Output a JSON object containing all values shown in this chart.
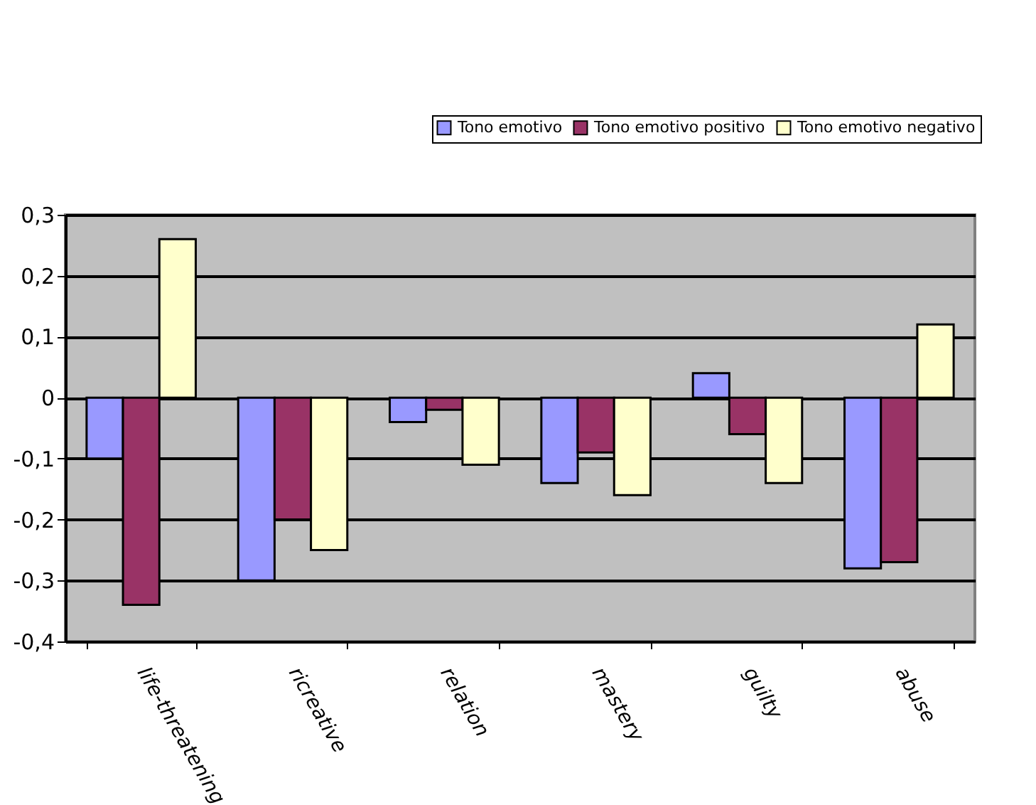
{
  "chart_data": {
    "type": "bar",
    "categories": [
      "life-threatening",
      "ricreative",
      "relation",
      "mastery",
      "guilty",
      "abuse"
    ],
    "series": [
      {
        "name": "Tono emotivo",
        "color": "#9999ff",
        "values": [
          -0.1,
          -0.3,
          -0.04,
          -0.14,
          0.04,
          -0.28
        ]
      },
      {
        "name": "Tono emotivo positivo",
        "color": "#993366",
        "values": [
          -0.34,
          -0.2,
          -0.02,
          -0.09,
          -0.06,
          -0.27
        ]
      },
      {
        "name": "Tono emotivo negativo",
        "color": "#ffffcc",
        "values": [
          0.26,
          -0.25,
          -0.11,
          -0.16,
          -0.14,
          0.12
        ]
      }
    ],
    "ylim": [
      -0.4,
      0.3
    ],
    "yticks": [
      {
        "value": -0.4,
        "label": "-0,4"
      },
      {
        "value": -0.3,
        "label": "-0,3"
      },
      {
        "value": -0.2,
        "label": "-0,2"
      },
      {
        "value": -0.1,
        "label": "-0,1"
      },
      {
        "value": 0,
        "label": "0"
      },
      {
        "value": 0.1,
        "label": "0,1"
      },
      {
        "value": 0.2,
        "label": "0,2"
      },
      {
        "value": 0.3,
        "label": "0,3"
      }
    ],
    "grid": "y",
    "legend": "top right"
  }
}
